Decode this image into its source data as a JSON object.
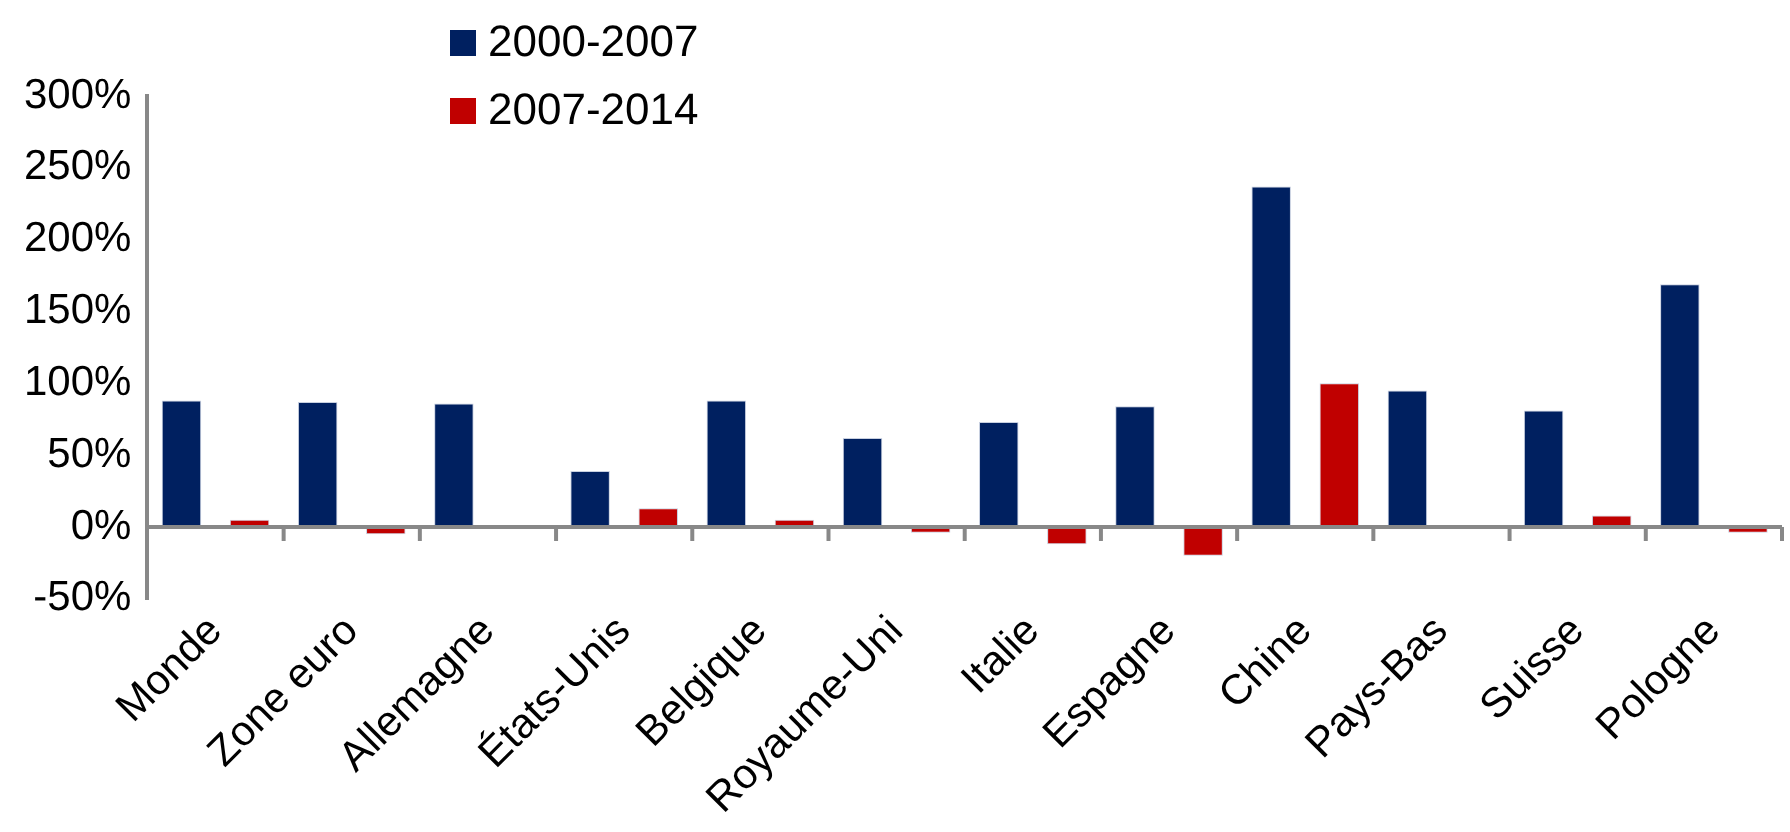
{
  "chart_data": {
    "type": "bar",
    "categories": [
      "Monde",
      "Zone euro",
      "Allemagne",
      "États-Unis",
      "Belgique",
      "Royaume-Uni",
      "Italie",
      "Espagne",
      "Chine",
      "Pays-Bas",
      "Suisse",
      "Pologne"
    ],
    "series": [
      {
        "name": "2000-2007",
        "color": "#002060",
        "values": [
          88,
          87,
          86,
          39,
          88,
          62,
          73,
          84,
          237,
          95,
          81,
          169
        ]
      },
      {
        "name": "2007-2014",
        "color": "#c00000",
        "values": [
          5,
          -5,
          null,
          13,
          5,
          -4,
          -12,
          -20,
          100,
          null,
          8,
          -4
        ]
      }
    ],
    "ylim": [
      -50,
      300
    ],
    "yticks": [
      {
        "value": -50,
        "label": "-50%"
      },
      {
        "value": 0,
        "label": "0%"
      },
      {
        "value": 50,
        "label": "50%"
      },
      {
        "value": 100,
        "label": "100%"
      },
      {
        "value": 150,
        "label": "150%"
      },
      {
        "value": 200,
        "label": "200%"
      },
      {
        "value": 250,
        "label": "250%"
      },
      {
        "value": 300,
        "label": "300%"
      }
    ],
    "grid": false,
    "legend": "top"
  }
}
